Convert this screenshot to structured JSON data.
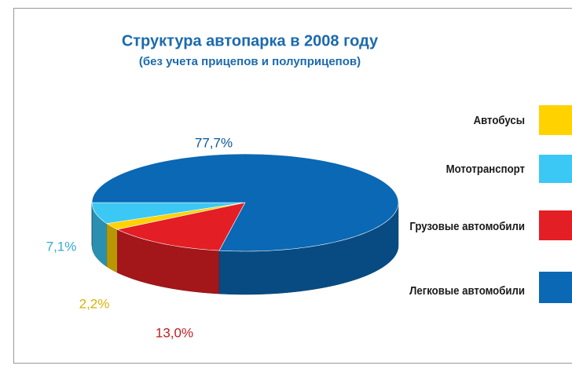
{
  "chart_data": {
    "type": "pie3d",
    "title": "Структура автопарка в 2008 году",
    "subtitle": "(без учета прицепов и полуприцепов)",
    "categories": [
      "Автобусы",
      "Мототранспорт",
      "Грузовые автомобили",
      "Легковые автомобили"
    ],
    "values": [
      2.2,
      7.1,
      13.0,
      77.7
    ],
    "value_labels": [
      "2,2%",
      "7,1%",
      "13,0%",
      "77,7%"
    ],
    "colors": [
      "#ffd200",
      "#3cc8f4",
      "#e31e24",
      "#0a68b4"
    ],
    "legend": "right"
  }
}
